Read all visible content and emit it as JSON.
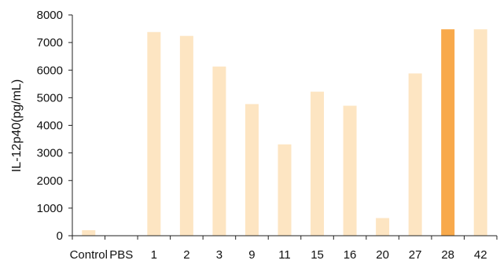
{
  "chart_data": {
    "type": "bar",
    "title": "",
    "xlabel": "",
    "ylabel": "IL-12p40(pg/mL)",
    "ylim": [
      0,
      8000
    ],
    "yticks": [
      0,
      1000,
      2000,
      3000,
      4000,
      5000,
      6000,
      7000,
      8000
    ],
    "grid": false,
    "categories": [
      "Control",
      "PBS",
      "1",
      "2",
      "3",
      "9",
      "11",
      "15",
      "16",
      "20",
      "27",
      "28",
      "42"
    ],
    "values": [
      200,
      0,
      7380,
      7240,
      6130,
      4770,
      3310,
      5220,
      4710,
      640,
      5880,
      7480,
      7480
    ],
    "highlight_category": "28",
    "colors": {
      "bar": "#fde5c2",
      "highlight": "#f8a94b",
      "axis": "#222222"
    }
  }
}
